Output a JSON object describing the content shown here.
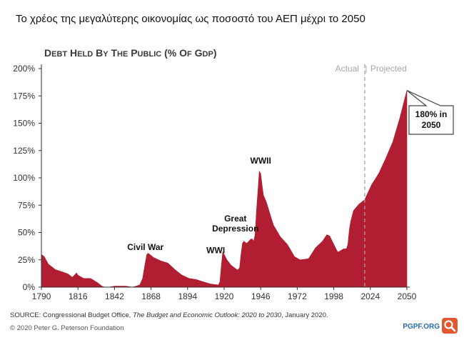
{
  "caption": "Το χρέος της μεγαλύτερης οικονομίας ως ποσοστό του ΑΕΠ μέχρι το 2050",
  "source": {
    "prefix": "SOURCE: Congressional Budget Office, ",
    "title": "The Budget and Economic Outlook: 2020 to 2030",
    "suffix": ", January 2020."
  },
  "copyright": "© 2020 Peter G. Peterson Foundation",
  "footer_logo": "PGPF.ORG",
  "chart_data": {
    "type": "area",
    "title": "DEBT HELD BY THE PUBLIC (% OF GDP)",
    "xlabel": "",
    "ylabel": "",
    "xlim": [
      1790,
      2050
    ],
    "ylim": [
      0,
      200
    ],
    "x_ticks": [
      "1790",
      "1816",
      "1842",
      "1868",
      "1894",
      "1920",
      "1946",
      "1972",
      "1998",
      "2024",
      "2050"
    ],
    "y_ticks": [
      "0%",
      "25%",
      "50%",
      "75%",
      "100%",
      "125%",
      "150%",
      "175%",
      "200%"
    ],
    "grid": false,
    "color": "#b11e31",
    "divider_year": 2020,
    "period_labels": {
      "actual": "Actual",
      "separator": "|",
      "projected": "Projected"
    },
    "series": [
      {
        "x": [
          1790,
          1792,
          1795,
          1800,
          1805,
          1809,
          1812,
          1815,
          1816,
          1820,
          1825,
          1830,
          1833,
          1835,
          1838,
          1842,
          1850,
          1855,
          1860,
          1862,
          1863,
          1864,
          1865,
          1866,
          1868,
          1870,
          1875,
          1880,
          1885,
          1890,
          1895,
          1900,
          1905,
          1910,
          1916,
          1917,
          1918,
          1919,
          1920,
          1922,
          1925,
          1929,
          1930,
          1931,
          1932,
          1933,
          1934,
          1936,
          1939,
          1940,
          1941,
          1942,
          1943,
          1944,
          1945,
          1946,
          1947,
          1948,
          1950,
          1955,
          1960,
          1965,
          1970,
          1974,
          1980,
          1985,
          1990,
          1993,
          1995,
          2000,
          2001,
          2005,
          2007,
          2008,
          2009,
          2010,
          2012,
          2014,
          2016,
          2019,
          2020,
          2025,
          2030,
          2035,
          2040,
          2045,
          2050
        ],
        "values": [
          30,
          28,
          21,
          16,
          14,
          12,
          9,
          13,
          11,
          8,
          8,
          4,
          1,
          0,
          0,
          1,
          1,
          0,
          2,
          8,
          16,
          23,
          30,
          31,
          29,
          27,
          24,
          22,
          16,
          11,
          8,
          7,
          5,
          3,
          2,
          5,
          20,
          32,
          30,
          25,
          20,
          16,
          16,
          18,
          30,
          40,
          42,
          40,
          44,
          44,
          42,
          48,
          70,
          88,
          106,
          104,
          93,
          84,
          78,
          57,
          46,
          39,
          28,
          25,
          26,
          36,
          42,
          48,
          47,
          34,
          32,
          35,
          35,
          39,
          52,
          60,
          70,
          73,
          76,
          79,
          80,
          94,
          104,
          118,
          133,
          155,
          180
        ]
      }
    ],
    "annotations": [
      {
        "text": "Civil War",
        "x": 1864,
        "y": 34
      },
      {
        "text": "WWI",
        "x": 1914,
        "y": 31
      },
      {
        "text": "Great",
        "x": 1928,
        "y": 60
      },
      {
        "text": "Depression",
        "x": 1928,
        "y": 51
      },
      {
        "text": "WWII",
        "x": 1946,
        "y": 113
      }
    ],
    "callout": {
      "lines": [
        "180% in",
        "2050"
      ],
      "x": 2050,
      "y": 180
    }
  }
}
